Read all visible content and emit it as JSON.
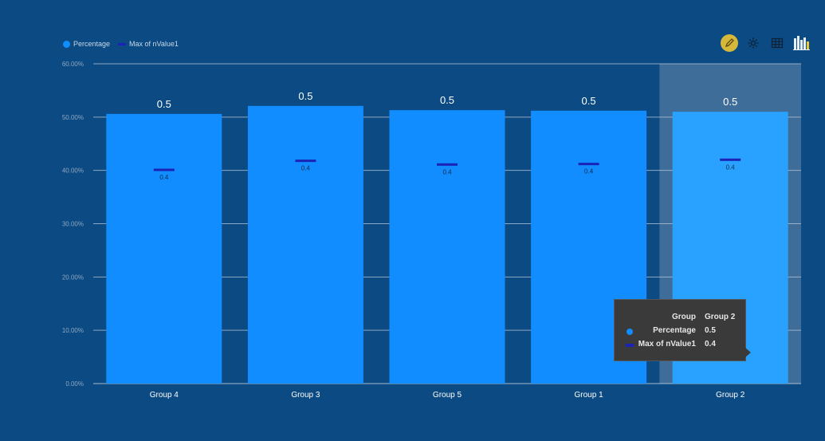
{
  "colors": {
    "background": "#0b4a82",
    "bar": "#118dff",
    "bar_highlight": "#29a2ff",
    "highlight_band": "#3f6d99",
    "max_marker": "#1a23b5",
    "grid": "#b8c7d9",
    "tooltip_bg": "#3a3a3a"
  },
  "legend": {
    "items": [
      {
        "label": "Percentage",
        "icon": "circle",
        "color": "#118dff"
      },
      {
        "label": "Max of nValue1",
        "icon": "dash",
        "color": "#1a23b5"
      }
    ]
  },
  "toolbar": {
    "icons": [
      {
        "name": "pencil-icon",
        "active": true
      },
      {
        "name": "gear-icon",
        "active": false
      },
      {
        "name": "table-icon",
        "active": false
      },
      {
        "name": "chart-icon",
        "active": false
      }
    ]
  },
  "tooltip": {
    "rows": [
      {
        "key": "Group",
        "value": "Group 2",
        "marker": "none"
      },
      {
        "key": "Percentage",
        "value": "0.5",
        "marker": "circle"
      },
      {
        "key": "Max of nValue1",
        "value": "0.4",
        "marker": "dash"
      }
    ]
  },
  "chart_data": {
    "type": "bar",
    "categories": [
      "Group 4",
      "Group 3",
      "Group 5",
      "Group 1",
      "Group 2"
    ],
    "series": [
      {
        "name": "Percentage",
        "values": [
          0.506,
          0.521,
          0.513,
          0.512,
          0.51
        ],
        "labels": [
          "0.5",
          "0.5",
          "0.5",
          "0.5",
          "0.5"
        ]
      },
      {
        "name": "Max of nValue1",
        "values": [
          0.401,
          0.418,
          0.411,
          0.412,
          0.42
        ],
        "labels": [
          "0.4",
          "0.4",
          "0.4",
          "0.4",
          "0.4"
        ]
      }
    ],
    "y_ticks": [
      "0.00%",
      "10.00%",
      "20.00%",
      "30.00%",
      "40.00%",
      "50.00%",
      "60.00%"
    ],
    "ylim": [
      0,
      0.6
    ],
    "grid": true,
    "legend_position": "top-left",
    "highlighted_category": "Group 2"
  }
}
